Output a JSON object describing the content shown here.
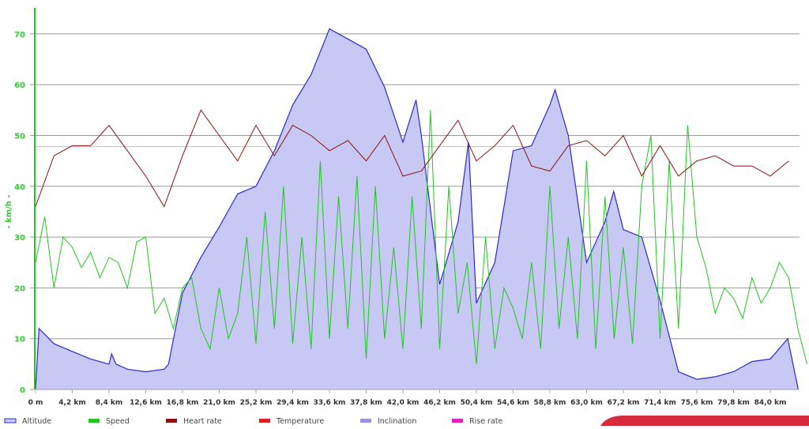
{
  "chart_data": {
    "type": "line",
    "title": "",
    "xlabel": "",
    "ylabel": "- km/h -",
    "ylim": [
      0,
      75
    ],
    "xlim_km": [
      0,
      87.2
    ],
    "y_ticks": [
      "0",
      "10",
      "20",
      "30",
      "40",
      "50",
      "60",
      "70"
    ],
    "x_ticks": [
      "0 m",
      "4,2 km",
      "8,4 km",
      "12,6 km",
      "16,8 km",
      "21,0 km",
      "25,2 km",
      "29,4 km",
      "33,6 km",
      "37,8 km",
      "42,0 km",
      "46,2 km",
      "50,4 km",
      "54,6 km",
      "58,8 km",
      "63,0 km",
      "67,2 km",
      "71,4 km",
      "75,6 km",
      "79,8 km",
      "84,0 km"
    ],
    "reference_line": 47.8,
    "grid": true,
    "legend_position": "bottom-left",
    "legend": [
      "Altitude",
      "Speed",
      "Heart rate",
      "Temperature",
      "Inclination",
      "Rise rate"
    ],
    "colors": {
      "Altitude": "#2b2bc8",
      "AltitudeFill": "#c8c8f4",
      "Speed": "#22c422",
      "Heart rate": "#8b1010",
      "Temperature": "#e02020",
      "Inclination": "#9b8fe8",
      "Rise rate": "#e020c0"
    },
    "series": [
      {
        "name": "Altitude",
        "x": [
          0,
          0.4,
          2.1,
          4.2,
          6.3,
          8.4,
          8.7,
          9.2,
          10.5,
          12.6,
          14.7,
          15.2,
          16.8,
          18.9,
          21,
          23.1,
          25.2,
          27.3,
          29.4,
          31.5,
          33.6,
          35.7,
          37.8,
          39.9,
          42,
          43.5,
          44.1,
          46.2,
          48.3,
          49.5,
          50.4,
          52.5,
          54.6,
          56.7,
          58.8,
          59.4,
          60.9,
          63,
          65.1,
          66.1,
          67.2,
          69.3,
          71.4,
          73.5,
          75.6,
          77.7,
          79.8,
          81.9,
          84,
          86,
          87.2
        ],
        "values": [
          0,
          12,
          9,
          7.5,
          6,
          5,
          7,
          5,
          4,
          3.5,
          4,
          5,
          19,
          26,
          32,
          38.5,
          40,
          47,
          56,
          62,
          71,
          69,
          67,
          59.5,
          48.7,
          57,
          50,
          20.7,
          33,
          48.7,
          17,
          25,
          47,
          48,
          56,
          59,
          50,
          25,
          33,
          39,
          31.5,
          30,
          17.5,
          3.5,
          2,
          2.5,
          3.5,
          5.5,
          6,
          10,
          0
        ]
      },
      {
        "name": "Speed",
        "x_step_km": 1.05,
        "values": [
          25,
          34,
          20,
          30,
          28,
          24,
          27,
          22,
          26,
          25,
          20,
          29,
          30,
          15,
          18,
          12,
          20,
          22,
          12,
          8,
          20,
          10,
          15,
          30,
          9,
          35,
          12,
          40,
          9,
          30,
          8,
          45,
          10,
          38,
          12,
          42,
          6,
          40,
          10,
          28,
          8,
          38,
          12,
          55,
          8,
          40,
          15,
          25,
          5,
          30,
          8,
          20,
          16,
          10,
          25,
          8,
          40,
          12,
          30,
          10,
          45,
          8,
          38,
          10,
          28,
          9,
          40,
          50,
          10,
          45,
          12,
          52,
          30,
          24,
          15,
          20,
          18,
          14,
          22,
          17,
          20,
          25,
          22,
          12,
          5
        ]
      },
      {
        "name": "Heart rate",
        "x_step_km": 2.1,
        "values": [
          36,
          46,
          48,
          48,
          52,
          47,
          42,
          36,
          46,
          55,
          50,
          45,
          52,
          46,
          52,
          50,
          47,
          49,
          45,
          50,
          42,
          43,
          48,
          53,
          45,
          48,
          52,
          44,
          43,
          48,
          49,
          46,
          50,
          42,
          48,
          42,
          45,
          46,
          44,
          44,
          42,
          45
        ]
      }
    ]
  }
}
